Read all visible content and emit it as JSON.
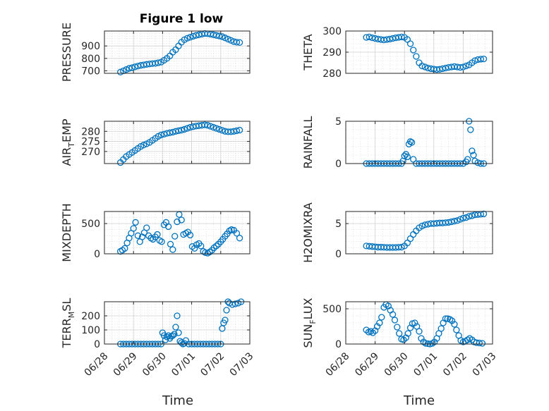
{
  "figure": {
    "title": "Figure 1 low",
    "marker_color": "#0072BD"
  },
  "chart_data": [
    {
      "type": "scatter",
      "ylabel": "PRESSURE",
      "ylim": [
        680,
        1020
      ],
      "yticks": [
        700,
        800,
        900
      ],
      "xlim": [
        0,
        5
      ],
      "x_is_date": true,
      "grid": true,
      "minor_grid": true,
      "x": [
        0.55,
        0.65,
        0.75,
        0.85,
        0.95,
        1.05,
        1.15,
        1.25,
        1.35,
        1.45,
        1.55,
        1.65,
        1.75,
        1.85,
        1.95,
        2.05,
        2.15,
        2.25,
        2.35,
        2.45,
        2.55,
        2.65,
        2.75,
        2.85,
        2.95,
        3.05,
        3.15,
        3.25,
        3.35,
        3.45,
        3.55,
        3.65,
        3.75,
        3.85,
        3.95,
        4.05,
        4.15,
        4.25,
        4.35,
        4.45,
        4.55,
        4.65
      ],
      "y": [
        690,
        700,
        710,
        720,
        725,
        732,
        738,
        744,
        748,
        752,
        755,
        758,
        760,
        765,
        770,
        785,
        800,
        820,
        850,
        870,
        900,
        930,
        950,
        962,
        970,
        978,
        985,
        990,
        995,
        1000,
        998,
        995,
        990,
        985,
        980,
        975,
        965,
        955,
        945,
        935,
        930,
        928
      ]
    },
    {
      "type": "scatter",
      "ylabel": "THETA",
      "ylim": [
        280,
        300
      ],
      "yticks": [
        280,
        290,
        300
      ],
      "xlim": [
        0,
        5
      ],
      "x_is_date": true,
      "grid": true,
      "minor_grid": true,
      "x": [
        0.7,
        0.8,
        0.9,
        1.0,
        1.1,
        1.2,
        1.3,
        1.4,
        1.5,
        1.6,
        1.7,
        1.8,
        1.9,
        2.0,
        2.1,
        2.2,
        2.3,
        2.4,
        2.5,
        2.6,
        2.7,
        2.8,
        2.9,
        3.0,
        3.1,
        3.2,
        3.3,
        3.4,
        3.5,
        3.6,
        3.7,
        3.8,
        3.9,
        4.0,
        4.1,
        4.2,
        4.3,
        4.4,
        4.5,
        4.6,
        4.7
      ],
      "y": [
        297,
        297.2,
        296.8,
        296.5,
        296.2,
        296,
        295.8,
        296,
        296.2,
        296.5,
        296.8,
        297,
        297.2,
        297,
        296,
        294,
        291,
        288,
        285,
        283.5,
        283,
        282.5,
        282.2,
        282,
        281.8,
        281.9,
        282.2,
        282.5,
        282.8,
        283,
        283.2,
        283,
        282.8,
        283,
        283.5,
        284,
        285,
        286,
        286.5,
        286.7,
        286.8
      ]
    },
    {
      "type": "scatter",
      "ylabel": "AIR_TEMP",
      "ylim": [
        264,
        285
      ],
      "yticks": [
        270,
        275,
        280
      ],
      "xlim": [
        0,
        5
      ],
      "x_is_date": true,
      "grid": true,
      "minor_grid": true,
      "x": [
        0.55,
        0.65,
        0.75,
        0.85,
        0.95,
        1.05,
        1.15,
        1.25,
        1.35,
        1.45,
        1.55,
        1.65,
        1.75,
        1.85,
        1.95,
        2.05,
        2.15,
        2.25,
        2.35,
        2.45,
        2.55,
        2.65,
        2.75,
        2.85,
        2.95,
        3.05,
        3.15,
        3.25,
        3.35,
        3.45,
        3.55,
        3.65,
        3.75,
        3.85,
        3.95,
        4.05,
        4.15,
        4.25,
        4.35,
        4.45,
        4.55,
        4.65
      ],
      "y": [
        264.5,
        266,
        267.5,
        268.5,
        269.5,
        270.5,
        271.5,
        272.5,
        273.2,
        273.8,
        274.5,
        275.5,
        276.5,
        277.5,
        278.2,
        278.6,
        279,
        279.3,
        279.6,
        280,
        280.3,
        280.6,
        281,
        281.5,
        282,
        282.3,
        282.6,
        282.8,
        283,
        283.2,
        283,
        282.5,
        282,
        281.5,
        281,
        280.5,
        280,
        279.8,
        279.8,
        280,
        280.3,
        280.6
      ]
    },
    {
      "type": "scatter",
      "ylabel": "RAINFALL",
      "ylim": [
        0,
        5
      ],
      "yticks": [
        0,
        5
      ],
      "xlim": [
        0,
        5
      ],
      "x_is_date": true,
      "grid": true,
      "minor_grid": true,
      "x": [
        0.7,
        0.8,
        0.9,
        1.0,
        1.1,
        1.2,
        1.3,
        1.4,
        1.5,
        1.6,
        1.7,
        1.8,
        1.9,
        1.95,
        2.0,
        2.05,
        2.1,
        2.15,
        2.2,
        2.25,
        2.3,
        2.4,
        2.5,
        2.6,
        2.7,
        2.8,
        2.9,
        3.0,
        3.1,
        3.2,
        3.3,
        3.4,
        3.5,
        3.6,
        3.7,
        3.8,
        3.9,
        4.0,
        4.1,
        4.15,
        4.2,
        4.25,
        4.3,
        4.35,
        4.4,
        4.5,
        4.6,
        4.7
      ],
      "y": [
        0,
        0,
        0,
        0,
        0,
        0,
        0,
        0,
        0,
        0,
        0,
        0,
        0,
        0.3,
        0.9,
        1.1,
        0.8,
        2.3,
        2.6,
        2.5,
        0.5,
        0,
        0,
        0,
        0,
        0,
        0,
        0,
        0,
        0,
        0,
        0,
        0,
        0,
        0,
        0,
        0,
        0,
        0.2,
        0.5,
        5.0,
        4.0,
        1.5,
        1.0,
        0.3,
        0.1,
        0,
        0
      ]
    },
    {
      "type": "scatter",
      "ylabel": "MIXDEPTH",
      "ylim": [
        0,
        700
      ],
      "yticks": [
        0,
        500
      ],
      "xlim": [
        0,
        5
      ],
      "x_is_date": true,
      "grid": true,
      "minor_grid": true,
      "x": [
        0.55,
        0.62,
        0.7,
        0.78,
        0.85,
        0.92,
        1.0,
        1.07,
        1.15,
        1.22,
        1.3,
        1.37,
        1.45,
        1.52,
        1.6,
        1.67,
        1.75,
        1.82,
        1.9,
        1.97,
        2.05,
        2.12,
        2.2,
        2.27,
        2.35,
        2.42,
        2.5,
        2.57,
        2.65,
        2.72,
        2.8,
        2.87,
        2.95,
        3.02,
        3.1,
        3.17,
        3.25,
        3.32,
        3.4,
        3.47,
        3.55,
        3.62,
        3.7,
        3.77,
        3.85,
        3.92,
        4.0,
        4.07,
        4.15,
        4.22,
        4.3,
        4.37,
        4.45,
        4.55,
        4.65
      ],
      "y": [
        40,
        60,
        90,
        180,
        260,
        340,
        420,
        520,
        300,
        200,
        280,
        350,
        430,
        300,
        260,
        240,
        280,
        320,
        220,
        200,
        480,
        520,
        450,
        160,
        70,
        290,
        530,
        650,
        560,
        320,
        340,
        360,
        310,
        120,
        90,
        150,
        170,
        130,
        40,
        20,
        10,
        30,
        60,
        100,
        130,
        160,
        200,
        240,
        290,
        330,
        380,
        400,
        390,
        340,
        260
      ]
    },
    {
      "type": "scatter",
      "ylabel": "H2OMIXRA",
      "ylim": [
        0,
        7
      ],
      "yticks": [
        0,
        5
      ],
      "xlim": [
        0,
        5
      ],
      "x_is_date": true,
      "grid": true,
      "minor_grid": true,
      "x": [
        0.7,
        0.8,
        0.9,
        1.0,
        1.1,
        1.2,
        1.3,
        1.4,
        1.5,
        1.6,
        1.7,
        1.8,
        1.9,
        2.0,
        2.1,
        2.2,
        2.3,
        2.4,
        2.5,
        2.6,
        2.7,
        2.8,
        2.9,
        3.0,
        3.1,
        3.2,
        3.3,
        3.4,
        3.5,
        3.6,
        3.7,
        3.8,
        3.9,
        4.0,
        4.1,
        4.2,
        4.3,
        4.4,
        4.5,
        4.6,
        4.7
      ],
      "y": [
        1.3,
        1.25,
        1.2,
        1.15,
        1.1,
        1.1,
        1.08,
        1.05,
        1.05,
        1.05,
        1.05,
        1.08,
        1.1,
        1.3,
        1.8,
        2.5,
        3.2,
        3.8,
        4.3,
        4.6,
        4.8,
        4.9,
        5.0,
        5.0,
        5.05,
        5.1,
        5.1,
        5.15,
        5.2,
        5.3,
        5.4,
        5.5,
        5.7,
        5.9,
        6.0,
        6.2,
        6.3,
        6.45,
        6.5,
        6.55,
        6.6
      ]
    },
    {
      "type": "scatter",
      "ylabel": "TERR_MSL",
      "ylim": [
        0,
        300
      ],
      "yticks": [
        0,
        100,
        200
      ],
      "xlim": [
        0,
        5
      ],
      "x_is_date": true,
      "grid": true,
      "minor_grid": true,
      "x": [
        0.55,
        0.65,
        0.75,
        0.85,
        0.95,
        1.05,
        1.15,
        1.25,
        1.35,
        1.45,
        1.55,
        1.65,
        1.75,
        1.85,
        1.95,
        2.0,
        2.05,
        2.1,
        2.15,
        2.2,
        2.25,
        2.3,
        2.35,
        2.4,
        2.45,
        2.5,
        2.55,
        2.6,
        2.65,
        2.7,
        2.75,
        2.8,
        2.9,
        3.0,
        3.1,
        3.2,
        3.3,
        3.4,
        3.5,
        3.6,
        3.7,
        3.8,
        3.9,
        4.0,
        4.05,
        4.1,
        4.15,
        4.2,
        4.25,
        4.3,
        4.4,
        4.5,
        4.6,
        4.7
      ],
      "y": [
        0,
        0,
        0,
        0,
        0,
        0,
        0,
        0,
        0,
        0,
        0,
        0,
        0,
        0,
        0,
        80,
        60,
        30,
        50,
        60,
        40,
        55,
        60,
        70,
        120,
        200,
        80,
        20,
        10,
        0,
        5,
        25,
        0,
        0,
        0,
        0,
        0,
        0,
        0,
        0,
        0,
        0,
        0,
        0,
        110,
        150,
        170,
        240,
        300,
        290,
        280,
        285,
        290,
        300
      ]
    },
    {
      "type": "scatter",
      "ylabel": "SUN_FLUX",
      "ylim": [
        0,
        600
      ],
      "yticks": [
        0,
        500
      ],
      "xlim": [
        0,
        5
      ],
      "x_is_date": true,
      "grid": true,
      "minor_grid": true,
      "x": [
        0.7,
        0.78,
        0.85,
        0.92,
        1.0,
        1.07,
        1.15,
        1.22,
        1.3,
        1.37,
        1.45,
        1.52,
        1.6,
        1.67,
        1.75,
        1.82,
        1.9,
        1.97,
        2.05,
        2.12,
        2.2,
        2.27,
        2.35,
        2.42,
        2.5,
        2.57,
        2.65,
        2.72,
        2.8,
        2.87,
        2.95,
        3.02,
        3.1,
        3.17,
        3.25,
        3.32,
        3.4,
        3.47,
        3.55,
        3.62,
        3.7,
        3.77,
        3.85,
        3.92,
        4.0,
        4.07,
        4.15,
        4.22,
        4.3,
        4.37,
        4.45,
        4.55,
        4.65
      ],
      "y": [
        200,
        170,
        180,
        160,
        190,
        250,
        300,
        380,
        520,
        560,
        540,
        480,
        420,
        340,
        240,
        150,
        70,
        60,
        90,
        150,
        230,
        290,
        300,
        250,
        180,
        80,
        30,
        10,
        5,
        0,
        10,
        30,
        80,
        150,
        220,
        300,
        360,
        360,
        350,
        330,
        280,
        200,
        120,
        50,
        30,
        40,
        60,
        80,
        60,
        30,
        20,
        15,
        10
      ]
    }
  ],
  "xaxis": {
    "tick_labels": [
      "06/28",
      "06/29",
      "06/30",
      "07/01",
      "07/02",
      "07/03"
    ],
    "label": "Time"
  }
}
